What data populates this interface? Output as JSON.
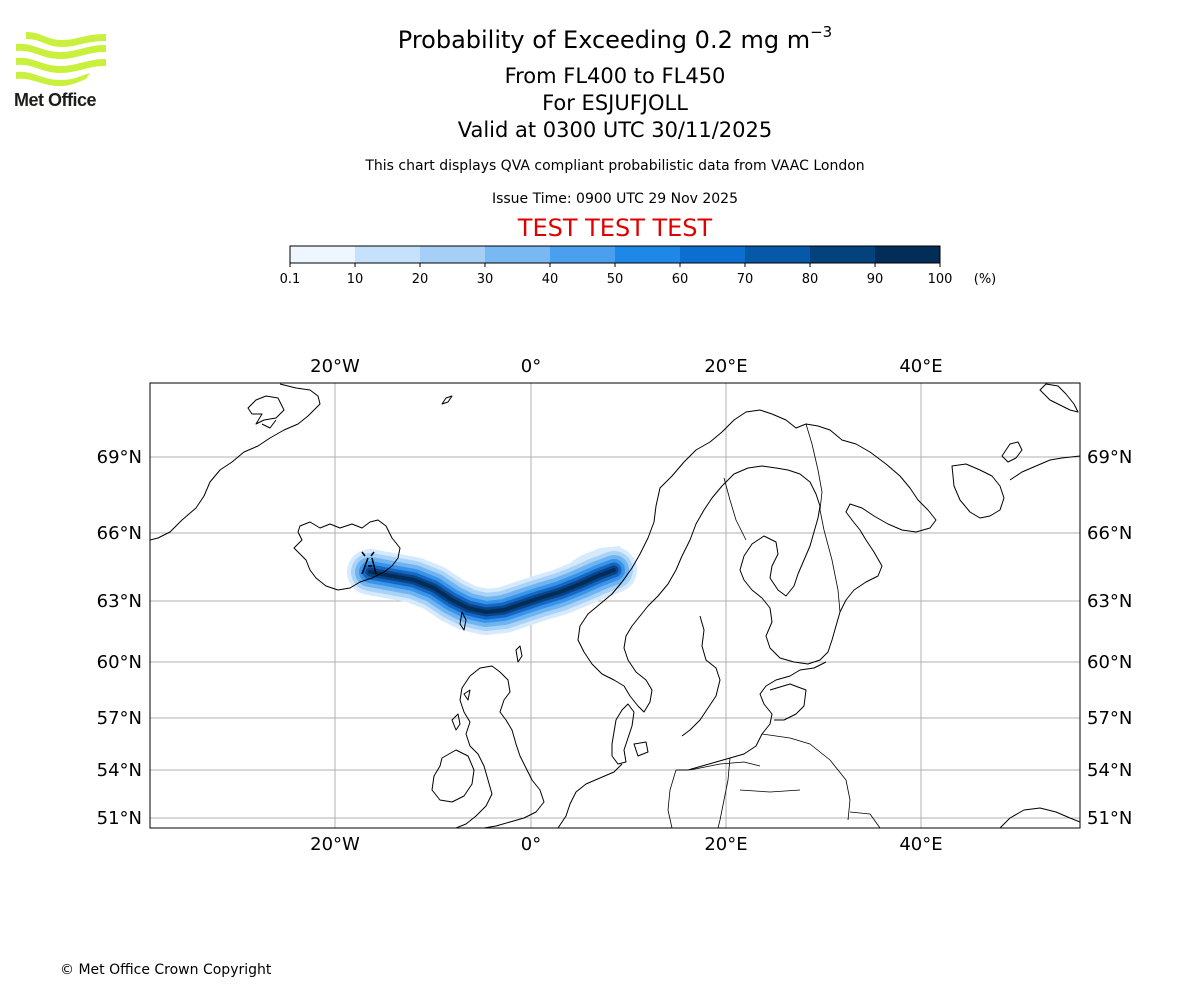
{
  "header": {
    "title_prefix": "Probability of Exceeding 0.2 mg m",
    "title_exponent": "−3",
    "level_range": "From FL400 to FL450",
    "volcano": "For ESJUFJOLL",
    "valid_time": "Valid at 0300 UTC 30/11/2025",
    "disclaimer": "This chart displays QVA compliant probabilistic data from VAAC London",
    "issue_time": "Issue Time: 0900 UTC 29 Nov 2025",
    "test_banner": "TEST TEST TEST"
  },
  "logo": {
    "text": "Met Office",
    "color": "#c8f03c"
  },
  "colorbar": {
    "ticks": [
      "0.1",
      "10",
      "20",
      "30",
      "40",
      "50",
      "60",
      "70",
      "80",
      "90",
      "100"
    ],
    "unit": "(%)",
    "colors": [
      "#eef6ff",
      "#c6e1fb",
      "#a5cff6",
      "#78b9f3",
      "#4aa0ef",
      "#1e88e8",
      "#0a6fd0",
      "#0658a8",
      "#04427d",
      "#022d57"
    ]
  },
  "map": {
    "lon_labels": [
      "20°W",
      "0°",
      "20°E",
      "40°E"
    ],
    "lat_labels": [
      "69°N",
      "66°N",
      "63°N",
      "60°N",
      "57°N",
      "54°N",
      "51°N"
    ],
    "plume_colors": [
      "#d6eafd",
      "#a9d2f8",
      "#6fb4f1",
      "#3893ea",
      "#1468c4",
      "#08448a",
      "#022d57"
    ]
  },
  "footer": {
    "copyright": "© Met Office Crown Copyright"
  }
}
